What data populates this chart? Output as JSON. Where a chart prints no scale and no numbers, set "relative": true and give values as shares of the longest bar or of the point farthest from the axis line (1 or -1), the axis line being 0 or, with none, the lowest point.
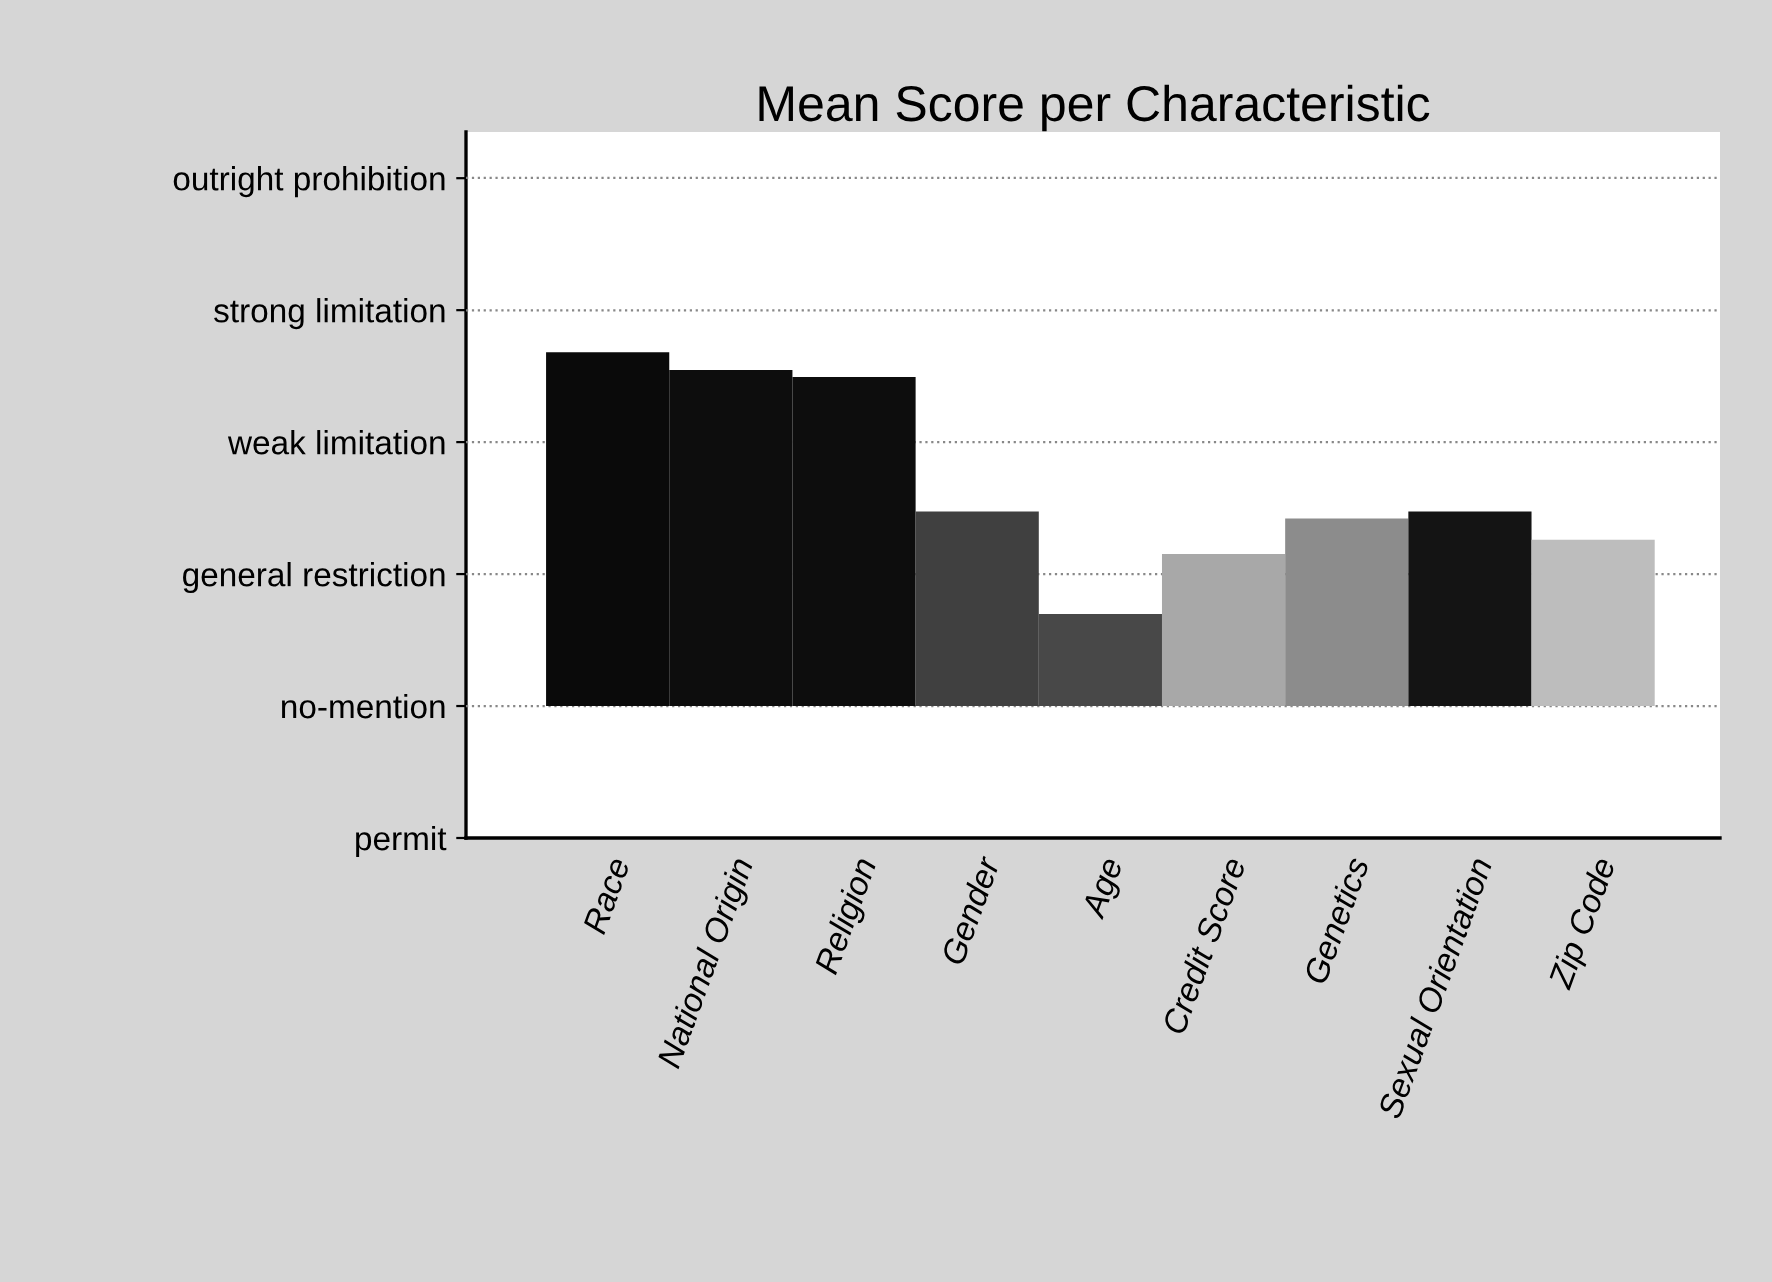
{
  "chart_data": {
    "type": "bar",
    "title": "Mean Score per Characteristic",
    "relative": true,
    "categories": [
      "Race",
      "National Origin",
      "Religion",
      "Gender",
      "Age",
      "Credit Score",
      "Genetics",
      "Sexual Orientation",
      "Zip Code"
    ],
    "y_categories": [
      "outright prohibition",
      "strong limitation",
      "weak limitation",
      "general restriction",
      "no-mention",
      "permit"
    ],
    "values": [
      1,
      0.95,
      0.93,
      0.55,
      0.26,
      0.43,
      0.53,
      0.55,
      0.47
    ],
    "colors": [
      "#0a0a0a",
      "#0d0d0d",
      "#0d0d0d",
      "#404040",
      "#484848",
      "#a8a8a8",
      "#8c8c8c",
      "#141414",
      "#bdbdbd"
    ],
    "ref_lines": [
      {
        "axis": "y",
        "value": 0,
        "color": "#888888",
        "line_style": "dotted"
      },
      {
        "axis": "y",
        "value": 0.373,
        "color": "#888888",
        "line_style": "dotted"
      },
      {
        "axis": "y",
        "value": 0.746,
        "color": "#888888",
        "line_style": "dotted"
      },
      {
        "axis": "y",
        "value": 1.119,
        "color": "#888888",
        "line_style": "dotted"
      },
      {
        "axis": "y",
        "value": 1.493,
        "color": "#888888",
        "line_style": "dotted"
      }
    ]
  }
}
